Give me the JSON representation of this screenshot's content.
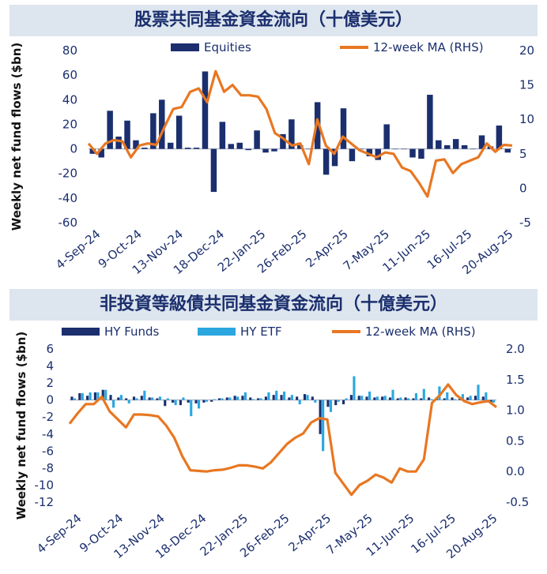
{
  "colors": {
    "navy": "#1b2f6e",
    "light_blue": "#2aa7df",
    "orange": "#e87722",
    "banner_bg": "#dde5ee"
  },
  "chart_data": [
    {
      "type": "bar",
      "title": "股票共同基金資金流向（十億美元）",
      "ylabel": "Weekly net fund flows ($bn)",
      "ylim": [
        -60,
        80
      ],
      "yticks": [
        "80",
        "60",
        "40",
        "20",
        "0",
        "-20",
        "-40",
        "-60"
      ],
      "y2lim": [
        -5,
        20
      ],
      "y2ticks": [
        "20",
        "15",
        "10",
        "5",
        "0",
        "-5"
      ],
      "x_tick_labels": [
        "4-Sep-24",
        "9-Oct-24",
        "13-Nov-24",
        "18-Dec-24",
        "22-Jan-25",
        "26-Feb-25",
        "2-Apr-25",
        "7-May-25",
        "11-Jun-25",
        "16-Jul-25",
        "20-Aug-25"
      ],
      "legend": [
        "Equities",
        "12-week MA (RHS)"
      ],
      "series": [
        {
          "name": "Equities",
          "kind": "bar",
          "axis": "left",
          "values": [
            -4,
            -7,
            31,
            10,
            23,
            7,
            1,
            29,
            40,
            5,
            27,
            1,
            1,
            63,
            -35,
            22,
            4,
            5,
            -1,
            15,
            -3,
            -2,
            12,
            24,
            3,
            0,
            38,
            -21,
            -14,
            33,
            -10,
            0,
            -6,
            -9,
            20,
            0,
            0,
            -7,
            -8,
            44,
            7,
            3,
            8,
            3,
            0,
            11,
            2,
            19,
            -3
          ]
        },
        {
          "name": "12-week MA (RHS)",
          "kind": "line",
          "axis": "right",
          "values": [
            6.5,
            5,
            6.5,
            7,
            6.8,
            4.5,
            6.2,
            6.5,
            6.3,
            9,
            11.5,
            11.8,
            14,
            14.5,
            12.5,
            17,
            14,
            15,
            13.5,
            13.5,
            13.3,
            11.5,
            8,
            7.2,
            6.2,
            6.5,
            3.5,
            10,
            6.2,
            5,
            7.5,
            6.5,
            5.5,
            5,
            4.5,
            5.2,
            5,
            3,
            2.5,
            0.8,
            -1.2,
            4,
            4.2,
            2.2,
            3.5,
            4,
            4.5,
            6.5,
            5.3,
            6.3,
            6.2
          ]
        }
      ]
    },
    {
      "type": "bar",
      "title": "非投資等級債共同基金資金流向（十億美元）",
      "ylabel": "Weekly net fund flows ($bn)",
      "ylim": [
        -12,
        6
      ],
      "yticks": [
        "6",
        "4",
        "2",
        "0",
        "-2",
        "-4",
        "-6",
        "-8",
        "-10",
        "-12"
      ],
      "y2lim": [
        -0.5,
        2.0
      ],
      "y2ticks": [
        "2.0",
        "1.5",
        "1.0",
        "0.5",
        "0.0",
        "-0.5"
      ],
      "x_tick_labels": [
        "4-Sep-24",
        "9-Oct-24",
        "13-Nov-24",
        "18-Dec-24",
        "22-Jan-25",
        "26-Feb-25",
        "2-Apr-25",
        "7-May-25",
        "11-Jun-25",
        "16-Jul-25",
        "20-Aug-25"
      ],
      "legend": [
        "HY Funds",
        "HY ETF",
        "12-week MA (RHS)"
      ],
      "series": [
        {
          "name": "HY Funds",
          "kind": "bar",
          "axis": "left",
          "values": [
            0.4,
            0.8,
            0.5,
            0.9,
            1.2,
            0.6,
            0.3,
            0.2,
            0.4,
            0.5,
            0.3,
            0.2,
            -0.7,
            -0.3,
            -0.6,
            -0.3,
            -0.4,
            -0.3,
            -0.2,
            0.2,
            0.3,
            0.5,
            0.5,
            0.3,
            0.2,
            0.4,
            0.6,
            0.6,
            0.3,
            0.4,
            0.7,
            0.4,
            -4,
            -0.8,
            -0.6,
            -0.5,
            0.6,
            0.5,
            0.4,
            0.3,
            0.4,
            0.3,
            0.2,
            0.3,
            0.2,
            0.2,
            0.3,
            0.3,
            0.2,
            0.3,
            0.2,
            0.3,
            0.5,
            0.4,
            -0.3
          ]
        },
        {
          "name": "HY ETF",
          "kind": "bar",
          "axis": "left",
          "values": [
            0.2,
            0.8,
            0.9,
            0.9,
            1.2,
            -0.9,
            0.6,
            -0.4,
            0.2,
            1.1,
            0.3,
            0.4,
            0.2,
            -0.6,
            0.3,
            -1.9,
            -1.0,
            -0.2,
            0.1,
            0.2,
            0.3,
            0.4,
            0.9,
            0.1,
            0.2,
            0.9,
            1.1,
            1.0,
            0.6,
            -0.5,
            0.6,
            -0.3,
            -6,
            -1.4,
            -0.2,
            0.2,
            2.8,
            0.5,
            1.0,
            0.4,
            0.5,
            1.2,
            0.3,
            0.2,
            0.8,
            1.3,
            0.1,
            1.6,
            0.9,
            0.1,
            0.7,
            0.5,
            1.8,
            0.9,
            -0.3
          ]
        },
        {
          "name": "12-week MA (RHS)",
          "kind": "line",
          "axis": "right",
          "values": [
            0.78,
            0.95,
            1.1,
            1.1,
            1.22,
            0.98,
            0.85,
            0.72,
            0.93,
            0.93,
            0.92,
            0.9,
            0.75,
            0.55,
            0.25,
            0.02,
            0.01,
            0.0,
            0.02,
            0.03,
            0.06,
            0.1,
            0.1,
            0.08,
            0.05,
            0.15,
            0.3,
            0.45,
            0.55,
            0.62,
            0.8,
            0.87,
            0.85,
            -0.02,
            -0.2,
            -0.38,
            -0.22,
            -0.15,
            -0.05,
            -0.1,
            -0.18,
            0.05,
            0.0,
            0.0,
            0.2,
            1.12,
            1.25,
            1.42,
            1.25,
            1.15,
            1.1,
            1.13,
            1.15,
            1.05
          ]
        }
      ]
    }
  ]
}
